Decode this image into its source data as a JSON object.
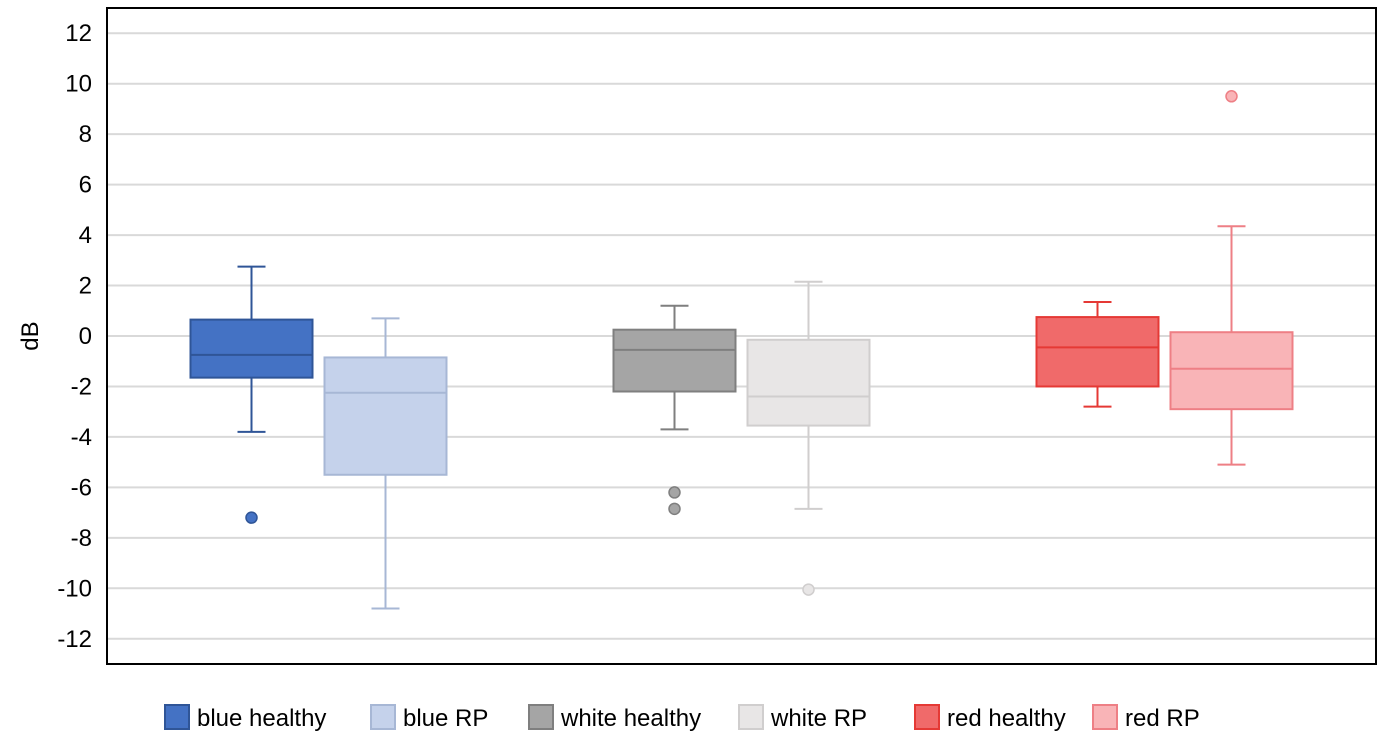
{
  "chart_data": {
    "type": "box",
    "title": "",
    "xlabel": "",
    "ylabel": "dB",
    "ylim": [
      -13,
      13
    ],
    "yticks": [
      12,
      10,
      8,
      6,
      4,
      2,
      0,
      -2,
      -4,
      -6,
      -8,
      -10,
      -12
    ],
    "ytick_labels": [
      "12",
      "10",
      "8",
      "6",
      "4",
      "2",
      "0",
      "-2",
      "-4",
      "-6",
      "-8",
      "-10",
      "-12"
    ],
    "grid": true,
    "legend_position": "bottom",
    "groups": [
      "blue",
      "white",
      "red"
    ],
    "series": [
      {
        "name": "blue healthy",
        "group": 0,
        "slot": 0,
        "min": -3.8,
        "q1": -1.65,
        "median": -0.75,
        "q3": 0.65,
        "max": 2.75,
        "outliers": [
          -7.2
        ],
        "fill": "#4472c4",
        "stroke": "#2f5597"
      },
      {
        "name": "blue RP",
        "group": 0,
        "slot": 1,
        "min": -10.8,
        "q1": -5.5,
        "median": -2.25,
        "q3": -0.85,
        "max": 0.7,
        "outliers": [],
        "fill": "#c5d2eb",
        "stroke": "#a7b7d5"
      },
      {
        "name": "white healthy",
        "group": 1,
        "slot": 0,
        "min": -3.7,
        "q1": -2.2,
        "median": -0.55,
        "q3": 0.25,
        "max": 1.2,
        "outliers": [
          -6.2,
          -6.85
        ],
        "fill": "#a5a5a5",
        "stroke": "#7f7f7f"
      },
      {
        "name": "white RP",
        "group": 1,
        "slot": 1,
        "min": -6.85,
        "q1": -3.55,
        "median": -2.4,
        "q3": -0.15,
        "max": 2.15,
        "outliers": [
          -10.05
        ],
        "fill": "#e8e6e6",
        "stroke": "#d0cece"
      },
      {
        "name": "red healthy",
        "group": 2,
        "slot": 0,
        "min": -2.8,
        "q1": -2.0,
        "median": -0.45,
        "q3": 0.75,
        "max": 1.35,
        "outliers": [],
        "fill": "#f06a6a",
        "stroke": "#e53935"
      },
      {
        "name": "red RP",
        "group": 2,
        "slot": 1,
        "min": -5.1,
        "q1": -2.9,
        "median": -1.3,
        "q3": 0.15,
        "max": 4.35,
        "outliers": [
          9.5
        ],
        "fill": "#f9b4b7",
        "stroke": "#ee7f85"
      }
    ]
  }
}
